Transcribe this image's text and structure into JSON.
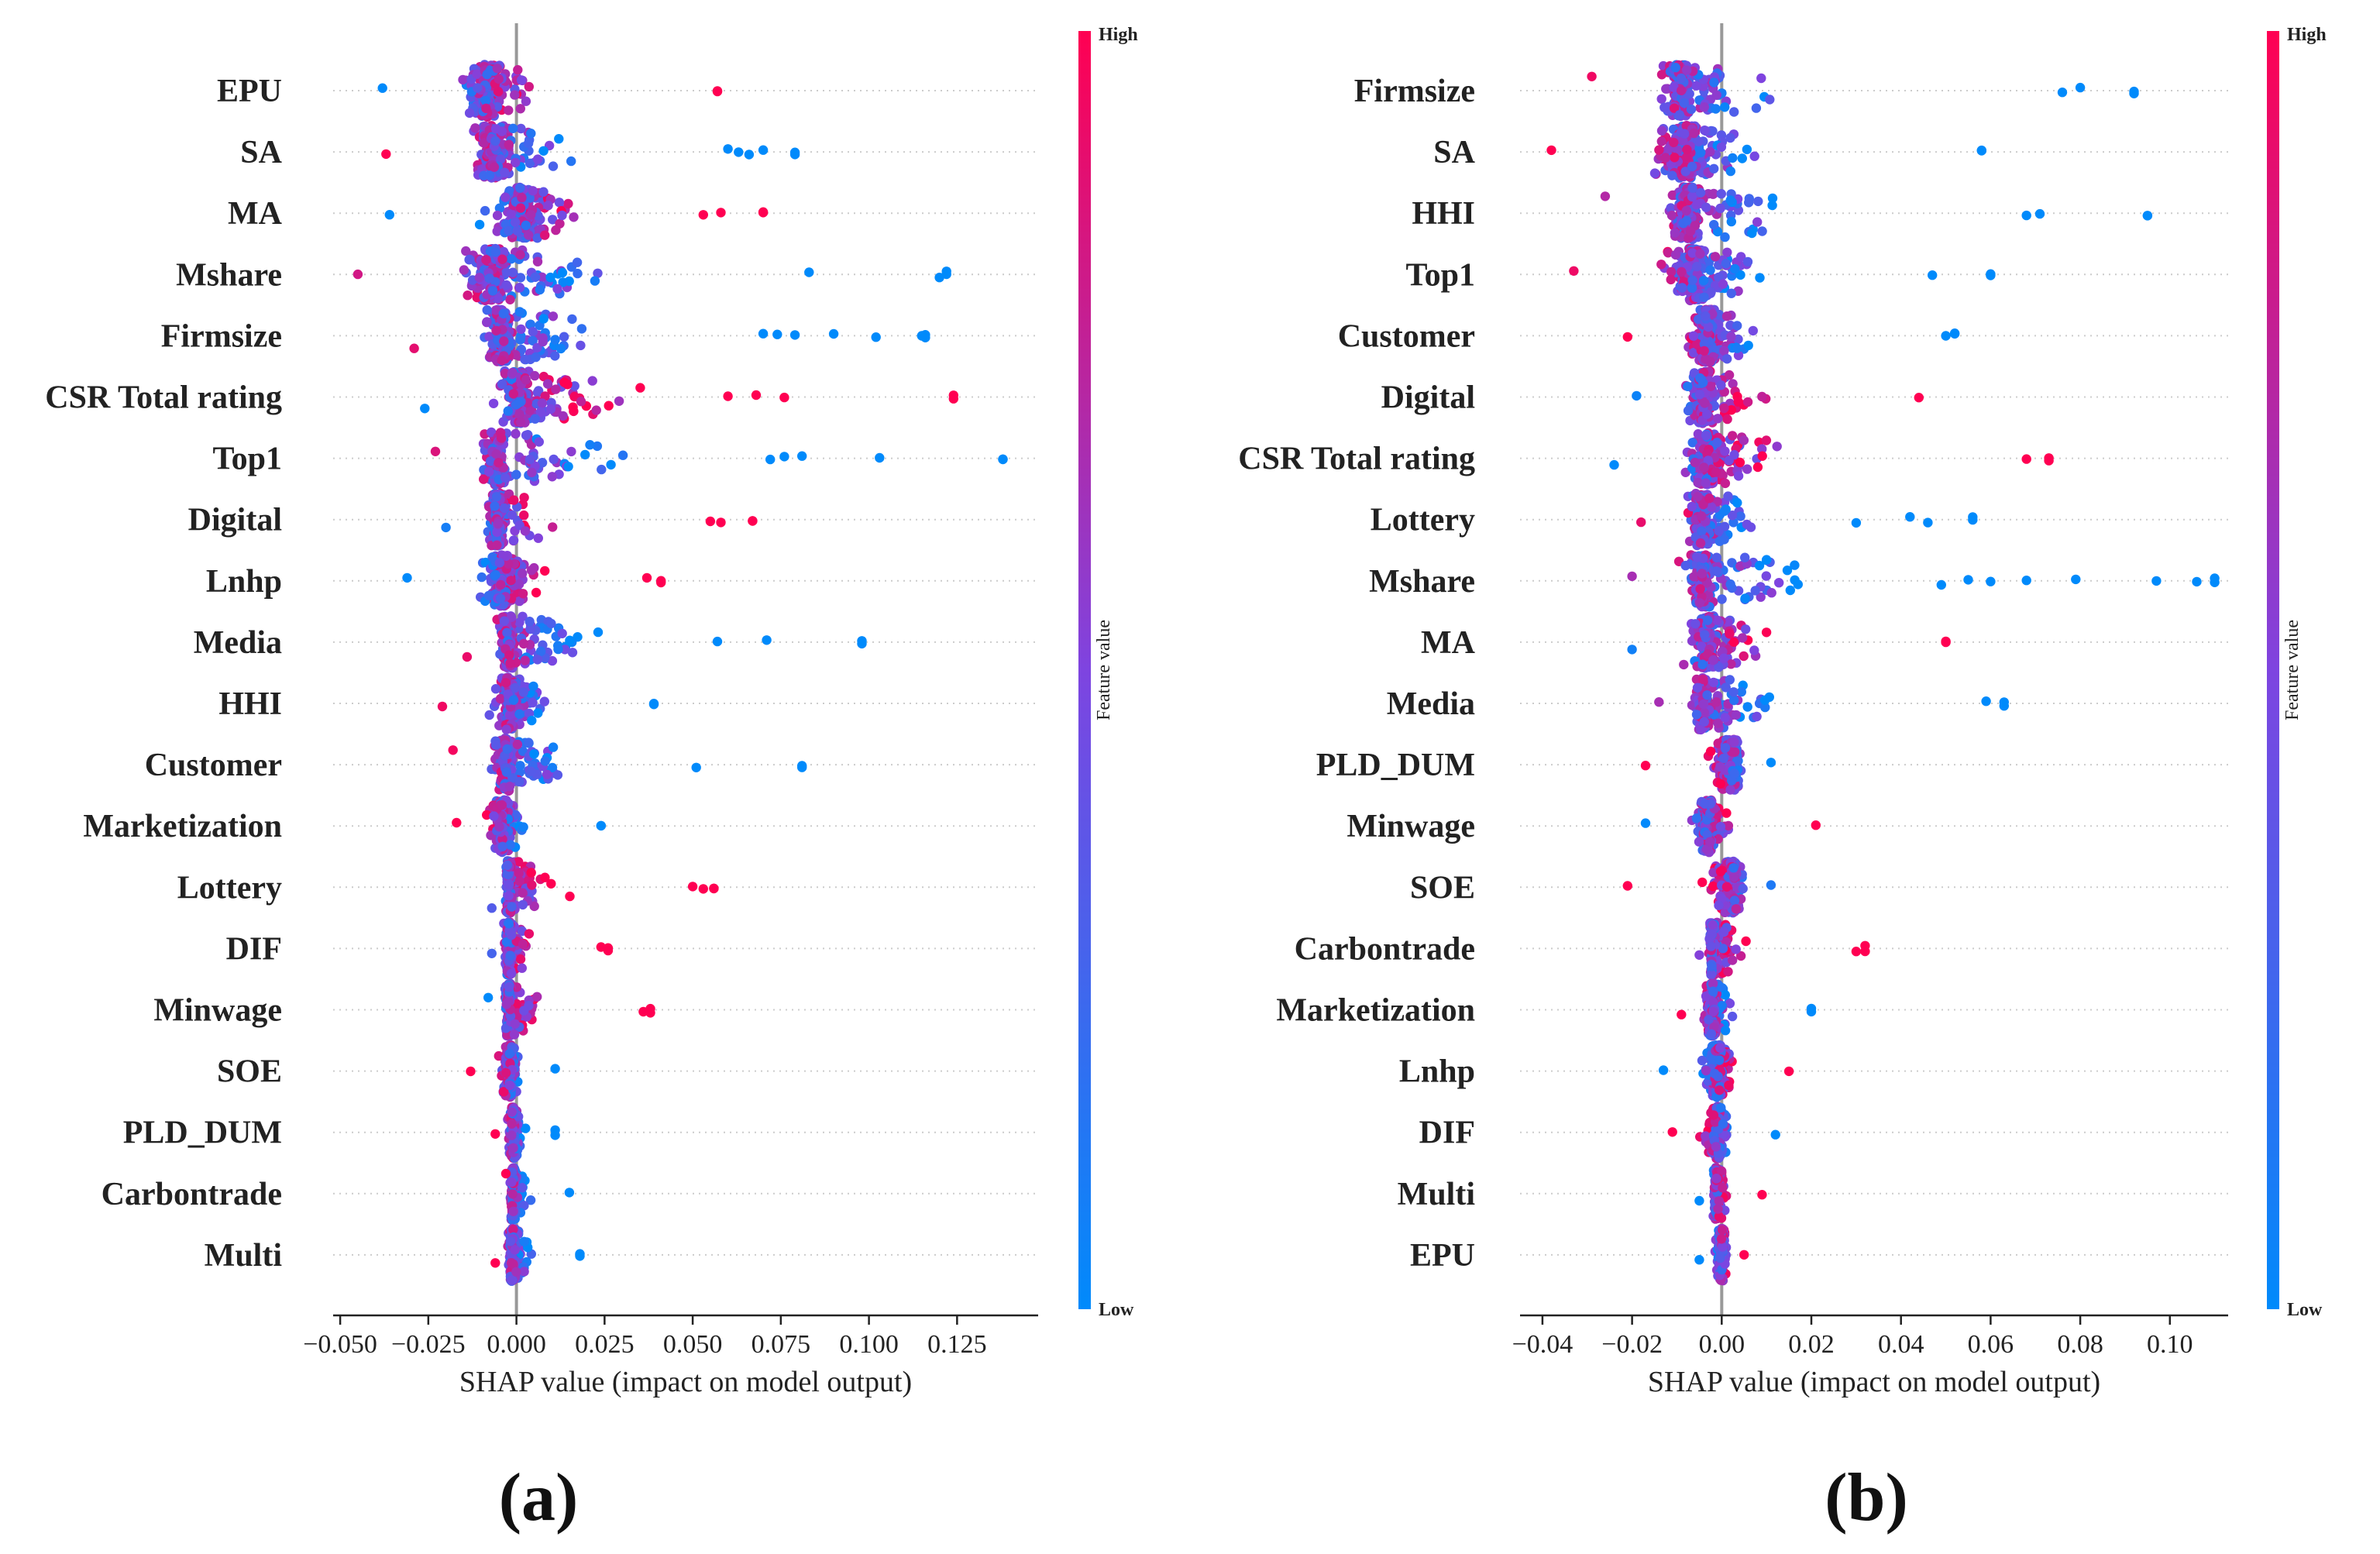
{
  "colors": {
    "low": "#008afb",
    "mid": "#7e44e0",
    "high": "#ff0052",
    "zero_line": "#999999",
    "row_guide": "#cccccc"
  },
  "chart_data": [
    {
      "type": "scatter",
      "subtype": "shap-beeswarm",
      "panel_label": "(a)",
      "xlabel": "SHAP value (impact on model output)",
      "xlim": [
        -0.052,
        0.148
      ],
      "xticks": [
        -0.05,
        -0.025,
        0.0,
        0.025,
        0.05,
        0.075,
        0.1,
        0.125
      ],
      "xtick_labels": [
        "−0.050",
        "−0.025",
        "0.000",
        "0.025",
        "0.050",
        "0.075",
        "0.100",
        "0.125"
      ],
      "colorbar": {
        "title": "Feature value",
        "high_label": "High",
        "low_label": "Low"
      },
      "grid": false,
      "features": [
        {
          "name": "EPU",
          "min": -0.038,
          "max": 0.057,
          "center": -0.008,
          "low_side": "neg",
          "outliers": [
            0.057
          ]
        },
        {
          "name": "SA",
          "min": -0.037,
          "max": 0.079,
          "center": -0.006,
          "low_side": "pos",
          "outliers": [
            0.06,
            0.063,
            0.066,
            0.07,
            0.079
          ]
        },
        {
          "name": "MA",
          "min": -0.036,
          "max": 0.07,
          "center": 0.002,
          "low_side": "neg",
          "outliers": [
            0.053,
            0.058,
            0.07
          ]
        },
        {
          "name": "Mshare",
          "min": -0.045,
          "max": 0.122,
          "center": -0.006,
          "low_side": "pos",
          "outliers": [
            0.083,
            0.12,
            0.122
          ]
        },
        {
          "name": "Firmsize",
          "min": -0.029,
          "max": 0.116,
          "center": -0.004,
          "low_side": "pos",
          "outliers": [
            0.07,
            0.074,
            0.079,
            0.09,
            0.102,
            0.115,
            0.116
          ]
        },
        {
          "name": "CSR Total rating",
          "min": -0.026,
          "max": 0.124,
          "center": 0.001,
          "low_side": "neg",
          "outliers": [
            0.06,
            0.068,
            0.076,
            0.124
          ]
        },
        {
          "name": "Top1",
          "min": -0.023,
          "max": 0.138,
          "center": -0.005,
          "low_side": "pos",
          "outliers": [
            0.072,
            0.076,
            0.081,
            0.103,
            0.138
          ]
        },
        {
          "name": "Digital",
          "min": -0.02,
          "max": 0.067,
          "center": -0.005,
          "low_side": "neg",
          "outliers": [
            0.055,
            0.058,
            0.067
          ]
        },
        {
          "name": "Lnhp",
          "min": -0.031,
          "max": 0.041,
          "center": -0.004,
          "low_side": "neg",
          "outliers": [
            0.037,
            0.041
          ]
        },
        {
          "name": "Media",
          "min": -0.014,
          "max": 0.098,
          "center": -0.002,
          "low_side": "pos",
          "outliers": [
            0.057,
            0.071,
            0.098
          ]
        },
        {
          "name": "HHI",
          "min": -0.021,
          "max": 0.039,
          "center": -0.002,
          "low_side": "pos",
          "outliers": [
            0.039
          ]
        },
        {
          "name": "Customer",
          "min": -0.018,
          "max": 0.081,
          "center": -0.003,
          "low_side": "pos",
          "outliers": [
            0.051,
            0.081
          ]
        },
        {
          "name": "Marketization",
          "min": -0.017,
          "max": 0.024,
          "center": -0.004,
          "low_side": "pos",
          "outliers": [
            0.024
          ]
        },
        {
          "name": "Lottery",
          "min": -0.007,
          "max": 0.056,
          "center": -0.002,
          "low_side": "neg",
          "outliers": [
            0.05,
            0.053,
            0.056
          ]
        },
        {
          "name": "DIF",
          "min": -0.007,
          "max": 0.026,
          "center": -0.002,
          "low_side": "neg",
          "outliers": [
            0.024,
            0.026
          ]
        },
        {
          "name": "Minwage",
          "min": -0.008,
          "max": 0.038,
          "center": -0.002,
          "low_side": "neg",
          "outliers": [
            0.036,
            0.038
          ]
        },
        {
          "name": "SOE",
          "min": -0.013,
          "max": 0.011,
          "center": -0.002,
          "low_side": "pos",
          "outliers": []
        },
        {
          "name": "PLD_DUM",
          "min": -0.006,
          "max": 0.011,
          "center": -0.001,
          "low_side": "pos",
          "outliers": [
            0.011
          ]
        },
        {
          "name": "Carbontrade",
          "min": -0.003,
          "max": 0.015,
          "center": -0.001,
          "low_side": "pos",
          "outliers": []
        },
        {
          "name": "Multi",
          "min": -0.006,
          "max": 0.018,
          "center": -0.001,
          "low_side": "pos",
          "outliers": [
            0.018
          ]
        }
      ]
    },
    {
      "type": "scatter",
      "subtype": "shap-beeswarm",
      "panel_label": "(b)",
      "xlabel": "SHAP value (impact on model output)",
      "xlim": [
        -0.045,
        0.113
      ],
      "xticks": [
        -0.04,
        -0.02,
        0.0,
        0.02,
        0.04,
        0.06,
        0.08,
        0.1
      ],
      "xtick_labels": [
        "−0.04",
        "−0.02",
        "0.00",
        "0.02",
        "0.04",
        "0.06",
        "0.08",
        "0.10"
      ],
      "colorbar": {
        "title": "Feature value",
        "high_label": "High",
        "low_label": "Low"
      },
      "grid": false,
      "features": [
        {
          "name": "Firmsize",
          "min": -0.029,
          "max": 0.092,
          "center": -0.009,
          "low_side": "pos",
          "outliers": [
            0.076,
            0.08,
            0.092
          ]
        },
        {
          "name": "SA",
          "min": -0.038,
          "max": 0.058,
          "center": -0.008,
          "low_side": "pos",
          "outliers": [
            0.058
          ]
        },
        {
          "name": "HHI",
          "min": -0.026,
          "max": 0.095,
          "center": -0.007,
          "low_side": "pos",
          "outliers": [
            0.068,
            0.071,
            0.095
          ]
        },
        {
          "name": "Top1",
          "min": -0.033,
          "max": 0.06,
          "center": -0.006,
          "low_side": "pos",
          "outliers": [
            0.047,
            0.06
          ]
        },
        {
          "name": "Customer",
          "min": -0.021,
          "max": 0.052,
          "center": -0.003,
          "low_side": "pos",
          "outliers": [
            0.05,
            0.052
          ]
        },
        {
          "name": "Digital",
          "min": -0.019,
          "max": 0.044,
          "center": -0.004,
          "low_side": "neg",
          "outliers": []
        },
        {
          "name": "CSR Total rating",
          "min": -0.024,
          "max": 0.073,
          "center": -0.003,
          "low_side": "neg",
          "outliers": [
            0.068,
            0.073
          ]
        },
        {
          "name": "Lottery",
          "min": -0.018,
          "max": 0.056,
          "center": -0.004,
          "low_side": "pos",
          "outliers": [
            0.03,
            0.042,
            0.046,
            0.056
          ]
        },
        {
          "name": "Mshare",
          "min": -0.02,
          "max": 0.11,
          "center": -0.004,
          "low_side": "pos",
          "outliers": [
            0.049,
            0.055,
            0.06,
            0.068,
            0.079,
            0.097,
            0.106,
            0.11
          ]
        },
        {
          "name": "MA",
          "min": -0.02,
          "max": 0.05,
          "center": -0.003,
          "low_side": "neg",
          "outliers": [
            0.05
          ]
        },
        {
          "name": "Media",
          "min": -0.014,
          "max": 0.063,
          "center": -0.004,
          "low_side": "pos",
          "outliers": [
            0.059,
            0.063
          ]
        },
        {
          "name": "PLD_DUM",
          "min": -0.017,
          "max": 0.011,
          "center": 0.002,
          "low_side": "pos",
          "outliers": []
        },
        {
          "name": "Minwage",
          "min": -0.017,
          "max": 0.021,
          "center": -0.003,
          "low_side": "neg",
          "outliers": []
        },
        {
          "name": "SOE",
          "min": -0.021,
          "max": 0.011,
          "center": 0.002,
          "low_side": "pos",
          "outliers": []
        },
        {
          "name": "Carbontrade",
          "min": -0.005,
          "max": 0.032,
          "center": -0.002,
          "low_side": "neg",
          "outliers": [
            0.03,
            0.032
          ]
        },
        {
          "name": "Marketization",
          "min": -0.009,
          "max": 0.02,
          "center": -0.002,
          "low_side": "pos",
          "outliers": [
            0.02
          ]
        },
        {
          "name": "Lnhp",
          "min": -0.013,
          "max": 0.015,
          "center": -0.001,
          "low_side": "neg",
          "outliers": []
        },
        {
          "name": "DIF",
          "min": -0.011,
          "max": 0.012,
          "center": -0.001,
          "low_side": "pos",
          "outliers": []
        },
        {
          "name": "Multi",
          "min": -0.005,
          "max": 0.009,
          "center": -0.001,
          "low_side": "neg",
          "outliers": []
        },
        {
          "name": "EPU",
          "min": -0.005,
          "max": 0.005,
          "center": 0.0,
          "low_side": "neg",
          "outliers": []
        }
      ]
    }
  ]
}
